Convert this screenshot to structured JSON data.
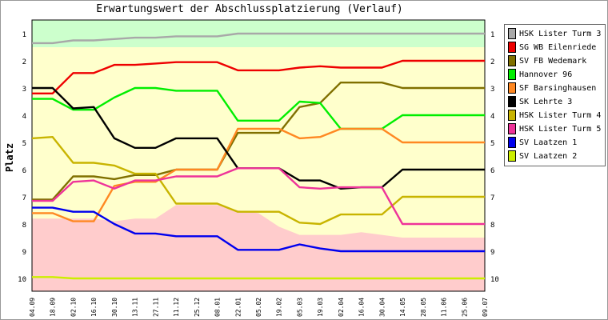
{
  "chart_data": {
    "type": "line",
    "title": "Erwartungswert der Abschlussplatzierung (Verlauf)",
    "ylabel": "Platz",
    "xlabel": "",
    "y_reversed": true,
    "ylim": [
      0.6,
      10.5
    ],
    "yticks": [
      1,
      2,
      3,
      4,
      5,
      6,
      7,
      8,
      9,
      10
    ],
    "categories": [
      "04.09",
      "18.09",
      "02.10",
      "16.10",
      "30.10",
      "13.11",
      "27.11",
      "11.12",
      "25.12",
      "08.01",
      "22.01",
      "05.02",
      "19.02",
      "05.03",
      "19.03",
      "02.04",
      "16.04",
      "30.04",
      "14.05",
      "28.05",
      "11.06",
      "25.06",
      "09.07"
    ],
    "bands": {
      "green_to": 1.5,
      "pink_from": [
        7.8,
        7.8,
        7.8,
        7.8,
        7.9,
        7.8,
        7.8,
        7.3,
        7.3,
        7.3,
        7.5,
        7.6,
        8.1,
        8.4,
        8.4,
        8.4,
        8.3,
        8.4,
        8.5,
        8.5,
        8.5,
        8.5,
        8.5
      ],
      "colors": {
        "green": "#ccffcc",
        "yellow": "#ffffcc",
        "pink": "#ffcccc"
      }
    },
    "legend_position": "right",
    "series": [
      {
        "name": "HSK Lister Turm 3",
        "color": "#a8a8a8",
        "values": [
          1.35,
          1.35,
          1.25,
          1.25,
          1.2,
          1.15,
          1.15,
          1.1,
          1.1,
          1.1,
          1.0,
          1.0,
          1.0,
          1.0,
          1.0,
          1.0,
          1.0,
          1.0,
          1.0,
          1.0,
          1.0,
          1.0,
          1.0
        ]
      },
      {
        "name": "SG WB Eilenriede",
        "color": "#ee0000",
        "values": [
          3.2,
          3.2,
          2.45,
          2.45,
          2.15,
          2.15,
          2.1,
          2.05,
          2.05,
          2.05,
          2.35,
          2.35,
          2.35,
          2.25,
          2.2,
          2.25,
          2.25,
          2.25,
          2.0,
          2.0,
          2.0,
          2.0,
          2.0
        ]
      },
      {
        "name": "SV FB Wedemark",
        "color": "#807000",
        "values": [
          7.1,
          7.1,
          6.25,
          6.25,
          6.35,
          6.2,
          6.2,
          6.0,
          6.0,
          6.0,
          4.65,
          4.65,
          4.65,
          3.7,
          3.55,
          2.8,
          2.8,
          2.8,
          3.0,
          3.0,
          3.0,
          3.0,
          3.0
        ]
      },
      {
        "name": "Hannover 96",
        "color": "#00ee00",
        "values": [
          3.4,
          3.4,
          3.8,
          3.8,
          3.35,
          3.0,
          3.0,
          3.1,
          3.1,
          3.1,
          4.2,
          4.2,
          4.2,
          3.5,
          3.55,
          4.5,
          4.5,
          4.5,
          4.0,
          4.0,
          4.0,
          4.0,
          4.0
        ]
      },
      {
        "name": "SF Barsinghausen",
        "color": "#ff8822",
        "values": [
          7.6,
          7.6,
          7.9,
          7.9,
          6.6,
          6.45,
          6.45,
          6.0,
          6.0,
          6.0,
          4.5,
          4.5,
          4.5,
          4.85,
          4.8,
          4.5,
          4.5,
          4.5,
          5.0,
          5.0,
          5.0,
          5.0,
          5.0
        ]
      },
      {
        "name": "SK Lehrte 3",
        "color": "#000000",
        "values": [
          3.0,
          3.0,
          3.75,
          3.7,
          4.85,
          5.2,
          5.2,
          4.85,
          4.85,
          4.85,
          5.95,
          5.95,
          5.95,
          6.4,
          6.4,
          6.7,
          6.65,
          6.65,
          6.0,
          6.0,
          6.0,
          6.0,
          6.0
        ]
      },
      {
        "name": "HSK Lister Turm 4",
        "color": "#c8b400",
        "values": [
          4.85,
          4.8,
          5.75,
          5.75,
          5.85,
          6.15,
          6.15,
          7.25,
          7.25,
          7.25,
          7.55,
          7.55,
          7.55,
          7.95,
          8.0,
          7.65,
          7.65,
          7.65,
          7.0,
          7.0,
          7.0,
          7.0,
          7.0
        ]
      },
      {
        "name": "HSK Lister Turm 5",
        "color": "#ee3399",
        "values": [
          7.15,
          7.15,
          6.45,
          6.4,
          6.7,
          6.4,
          6.4,
          6.25,
          6.25,
          6.25,
          5.95,
          5.95,
          5.95,
          6.65,
          6.7,
          6.65,
          6.65,
          6.65,
          8.0,
          8.0,
          8.0,
          8.0,
          8.0
        ]
      },
      {
        "name": "SV Laatzen 1",
        "color": "#0000ee",
        "values": [
          7.4,
          7.4,
          7.55,
          7.55,
          8.0,
          8.35,
          8.35,
          8.45,
          8.45,
          8.45,
          8.95,
          8.95,
          8.95,
          8.75,
          8.9,
          9.0,
          9.0,
          9.0,
          9.0,
          9.0,
          9.0,
          9.0,
          9.0
        ]
      },
      {
        "name": "SV Laatzen 2",
        "color": "#ccee00",
        "values": [
          9.95,
          9.95,
          10.0,
          10.0,
          10.0,
          10.0,
          10.0,
          10.0,
          10.0,
          10.0,
          10.0,
          10.0,
          10.0,
          10.0,
          10.0,
          10.0,
          10.0,
          10.0,
          10.0,
          10.0,
          10.0,
          10.0,
          10.0
        ]
      }
    ]
  }
}
